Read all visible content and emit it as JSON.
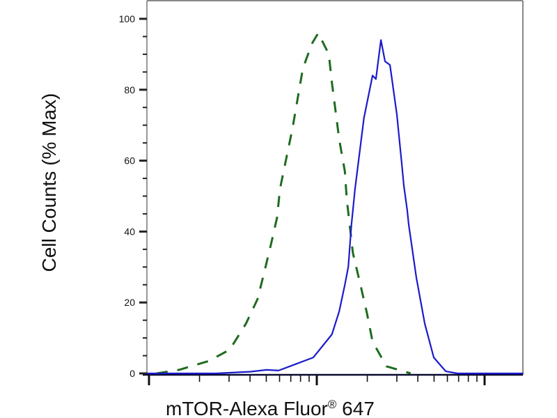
{
  "chart_data": {
    "type": "line",
    "title": "",
    "xlabel": "mTOR-Alexa Fluor",
    "xlabel_superscript": "®",
    "xlabel_suffix": " 647",
    "ylabel": "Cell Counts (% Max)",
    "x_scale": "log",
    "xlim": [
      0.97,
      170
    ],
    "x_major_ticks": [
      1,
      10,
      100
    ],
    "x_tick_labels_shown": false,
    "ylim": [
      0,
      100
    ],
    "y_ticks": [
      0,
      20,
      40,
      60,
      80,
      100
    ],
    "y_tick_labels": [
      "0",
      "20",
      "40",
      "60",
      "80",
      "100"
    ],
    "y_minor_step": 5,
    "grid": false,
    "legend": "none",
    "series": [
      {
        "style": "dashed",
        "color": "#1e6b1e",
        "x": [
          1.11,
          1.51,
          2.27,
          3.03,
          3.78,
          4.44,
          4.89,
          5.37,
          5.8,
          6.03,
          7.16,
          8.26,
          9.35,
          10.2,
          11.8,
          12.3,
          13.6,
          14.7,
          15.1,
          16.4,
          18.2,
          19.9,
          21.5,
          26.0,
          36.3
        ],
        "y": [
          0,
          1,
          3.5,
          6.7,
          14,
          21,
          29,
          37,
          44,
          52,
          69,
          86,
          93,
          96,
          90,
          82,
          66,
          57,
          49,
          34,
          25,
          17,
          9,
          2,
          0
        ]
      },
      {
        "style": "solid",
        "color": "#1a1acc",
        "x": [
          0.97,
          2.5,
          4.04,
          5.02,
          5.92,
          7.36,
          9.53,
          12.3,
          13.6,
          14.7,
          15.4,
          16.1,
          16.9,
          19.1,
          21.5,
          22.5,
          24.1,
          25.5,
          27.3,
          30.0,
          32.1,
          33.0,
          34.6,
          35.3,
          39.2,
          44.0,
          49.8,
          58.6,
          68.9,
          170
        ],
        "y": [
          0,
          0,
          0.5,
          1,
          0.8,
          2.5,
          4.5,
          11,
          17.5,
          25,
          30,
          42,
          52,
          72,
          84,
          83,
          94,
          88,
          87,
          73,
          59,
          53,
          46,
          42,
          27,
          14,
          4.5,
          0.6,
          0,
          0
        ]
      }
    ]
  }
}
